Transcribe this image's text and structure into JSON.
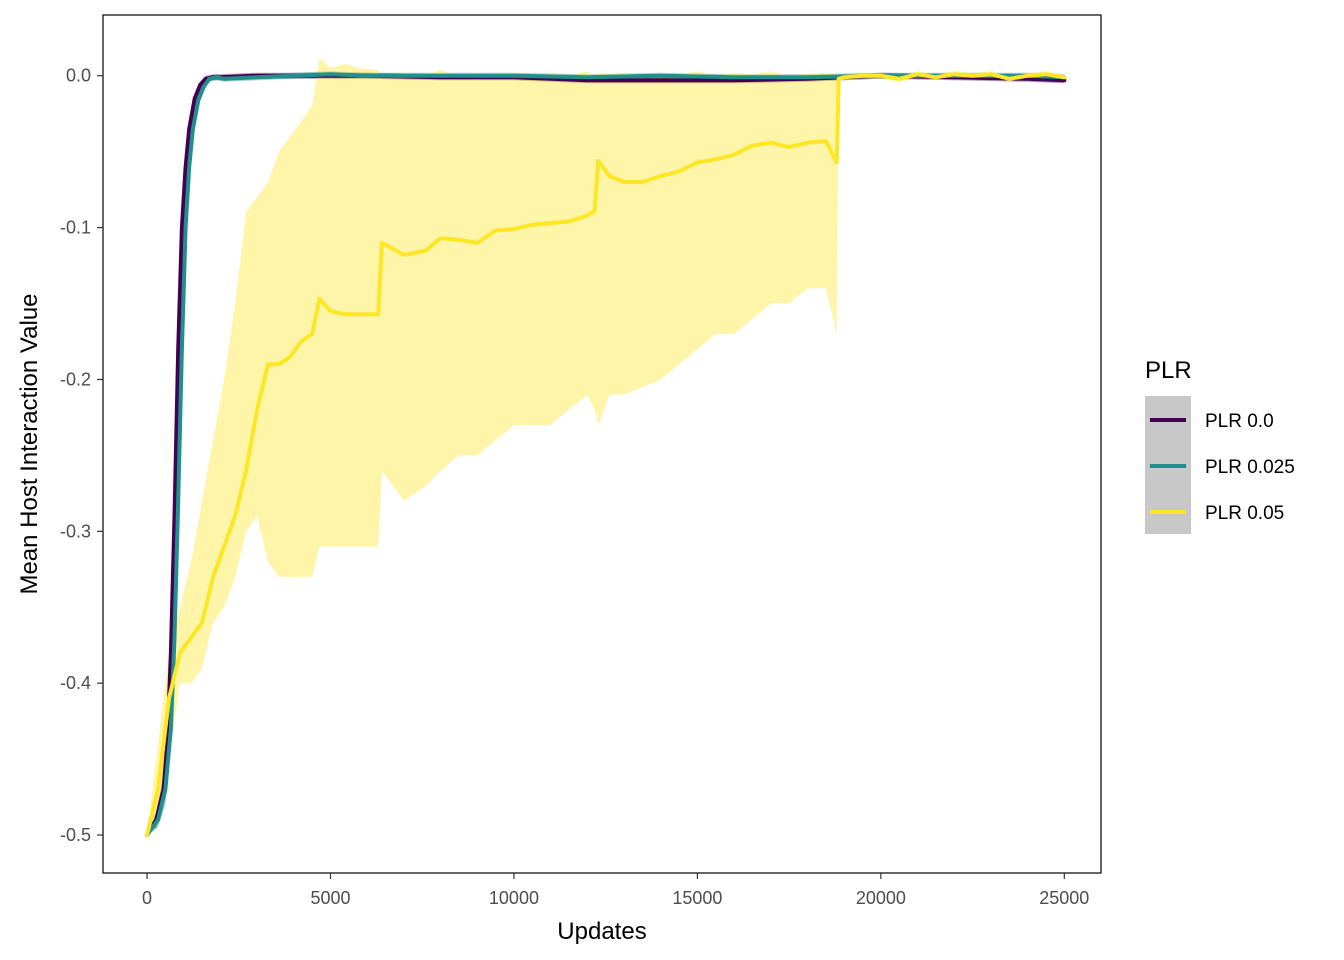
{
  "chart_data": {
    "type": "line",
    "title": "",
    "xlabel": "Updates",
    "ylabel": "Mean Host Interaction Value",
    "xlim": [
      -1200,
      26000
    ],
    "ylim": [
      -0.525,
      0.04
    ],
    "x_ticks": [
      0,
      5000,
      10000,
      15000,
      20000,
      25000
    ],
    "x_tick_labels": [
      "0",
      "5000",
      "10000",
      "15000",
      "20000",
      "25000"
    ],
    "y_ticks": [
      0.0,
      -0.1,
      -0.2,
      -0.3,
      -0.4,
      -0.5
    ],
    "y_tick_labels": [
      "0.0",
      "-0.1",
      "-0.2",
      "-0.3",
      "-0.4",
      "-0.5"
    ],
    "grid": false,
    "legend": {
      "title": "PLR",
      "position": "right",
      "entries": [
        "PLR 0.0",
        "PLR 0.025",
        "PLR 0.05"
      ]
    },
    "series": [
      {
        "name": "PLR 0.0",
        "color": "#440154",
        "x": [
          0,
          250,
          450,
          550,
          650,
          750,
          850,
          950,
          1050,
          1150,
          1300,
          1450,
          1600,
          1800,
          2000,
          3000,
          4000,
          5000,
          6000,
          8000,
          10000,
          12000,
          14000,
          16000,
          18000,
          20000,
          22000,
          24000,
          25000
        ],
        "y": [
          -0.5,
          -0.49,
          -0.47,
          -0.44,
          -0.38,
          -0.29,
          -0.18,
          -0.1,
          -0.06,
          -0.035,
          -0.015,
          -0.006,
          -0.002,
          -0.001,
          -0.001,
          0.0,
          0.0,
          0.0,
          0.0,
          -0.001,
          -0.001,
          -0.003,
          -0.003,
          -0.003,
          -0.002,
          0.0,
          -0.001,
          -0.002,
          -0.003
        ],
        "band_low": [
          -0.5,
          -0.495,
          -0.48,
          -0.45,
          -0.39,
          -0.3,
          -0.19,
          -0.11,
          -0.065,
          -0.04,
          -0.018,
          -0.008,
          -0.004,
          -0.003,
          -0.003,
          -0.002,
          -0.002,
          -0.002,
          -0.002,
          -0.003,
          -0.003,
          -0.005,
          -0.005,
          -0.005,
          -0.004,
          -0.002,
          -0.003,
          -0.004,
          -0.005
        ],
        "band_high": [
          -0.5,
          -0.485,
          -0.46,
          -0.43,
          -0.37,
          -0.28,
          -0.17,
          -0.09,
          -0.055,
          -0.03,
          -0.012,
          -0.004,
          0.0,
          0.001,
          0.001,
          0.002,
          0.002,
          0.002,
          0.002,
          0.001,
          0.001,
          -0.001,
          -0.001,
          -0.001,
          0.0,
          0.002,
          0.001,
          0.0,
          -0.001
        ]
      },
      {
        "name": "PLR 0.025",
        "color": "#21908C",
        "x": [
          0,
          300,
          500,
          650,
          750,
          850,
          950,
          1050,
          1150,
          1250,
          1400,
          1550,
          1700,
          1900,
          2100,
          3000,
          4000,
          5000,
          6000,
          8000,
          10000,
          12000,
          14000,
          16000,
          18000,
          20000,
          22000,
          24000,
          25000
        ],
        "y": [
          -0.5,
          -0.49,
          -0.47,
          -0.43,
          -0.37,
          -0.28,
          -0.18,
          -0.1,
          -0.06,
          -0.035,
          -0.016,
          -0.007,
          -0.002,
          -0.001,
          -0.002,
          -0.001,
          0.0,
          0.001,
          0.0,
          0.0,
          0.0,
          -0.001,
          0.0,
          -0.001,
          -0.001,
          0.0,
          0.0,
          0.0,
          -0.001
        ],
        "band_low": [
          -0.5,
          -0.495,
          -0.48,
          -0.44,
          -0.38,
          -0.29,
          -0.19,
          -0.11,
          -0.065,
          -0.04,
          -0.02,
          -0.009,
          -0.004,
          -0.003,
          -0.004,
          -0.003,
          -0.002,
          -0.001,
          -0.002,
          -0.002,
          -0.002,
          -0.003,
          -0.002,
          -0.003,
          -0.003,
          -0.002,
          -0.002,
          -0.002,
          -0.003
        ],
        "band_high": [
          -0.5,
          -0.485,
          -0.46,
          -0.42,
          -0.36,
          -0.27,
          -0.17,
          -0.09,
          -0.055,
          -0.03,
          -0.012,
          -0.005,
          0.0,
          0.001,
          0.0,
          0.001,
          0.002,
          0.003,
          0.002,
          0.002,
          0.002,
          0.001,
          0.002,
          0.001,
          0.001,
          0.002,
          0.002,
          0.002,
          0.001
        ]
      },
      {
        "name": "PLR 0.05",
        "color": "#FDE725",
        "x": [
          0,
          300,
          600,
          900,
          1200,
          1500,
          1800,
          2100,
          2400,
          2700,
          3000,
          3300,
          3600,
          3900,
          4200,
          4500,
          4700,
          5000,
          5400,
          5800,
          6300,
          6400,
          7000,
          7600,
          8000,
          8500,
          9000,
          9500,
          10000,
          10500,
          11000,
          11500,
          12000,
          12200,
          12300,
          12600,
          13000,
          13500,
          14000,
          14500,
          15000,
          15500,
          16000,
          16500,
          17000,
          17500,
          18000,
          18500,
          18800,
          18850,
          19000,
          19500,
          20000,
          20500,
          21000,
          21500,
          22000,
          22500,
          23000,
          23500,
          24000,
          24500,
          25000
        ],
        "y": [
          -0.5,
          -0.47,
          -0.41,
          -0.38,
          -0.37,
          -0.36,
          -0.33,
          -0.31,
          -0.29,
          -0.26,
          -0.22,
          -0.19,
          -0.19,
          -0.185,
          -0.175,
          -0.17,
          -0.147,
          -0.155,
          -0.157,
          -0.157,
          -0.157,
          -0.11,
          -0.118,
          -0.115,
          -0.107,
          -0.108,
          -0.11,
          -0.102,
          -0.101,
          -0.098,
          -0.097,
          -0.096,
          -0.092,
          -0.089,
          -0.056,
          -0.066,
          -0.07,
          -0.07,
          -0.066,
          -0.063,
          -0.057,
          -0.055,
          -0.052,
          -0.046,
          -0.044,
          -0.047,
          -0.044,
          -0.043,
          -0.057,
          -0.002,
          -0.001,
          0.0,
          0.0,
          -0.002,
          0.001,
          -0.001,
          0.001,
          0.0,
          0.001,
          -0.002,
          0.0,
          0.001,
          -0.001
        ],
        "band_low": [
          -0.5,
          -0.49,
          -0.45,
          -0.4,
          -0.4,
          -0.39,
          -0.36,
          -0.35,
          -0.33,
          -0.3,
          -0.29,
          -0.32,
          -0.33,
          -0.33,
          -0.33,
          -0.33,
          -0.31,
          -0.31,
          -0.31,
          -0.31,
          -0.31,
          -0.26,
          -0.28,
          -0.27,
          -0.26,
          -0.25,
          -0.25,
          -0.24,
          -0.23,
          -0.23,
          -0.23,
          -0.22,
          -0.21,
          -0.22,
          -0.23,
          -0.21,
          -0.21,
          -0.205,
          -0.2,
          -0.19,
          -0.18,
          -0.17,
          -0.17,
          -0.16,
          -0.15,
          -0.15,
          -0.14,
          -0.14,
          -0.17,
          -0.002,
          -0.003,
          -0.002,
          -0.002,
          -0.004,
          -0.001,
          -0.003,
          -0.001,
          -0.002,
          -0.001,
          -0.004,
          -0.002,
          -0.001,
          -0.003
        ],
        "band_high": [
          -0.5,
          -0.44,
          -0.38,
          -0.35,
          -0.32,
          -0.28,
          -0.24,
          -0.2,
          -0.15,
          -0.09,
          -0.08,
          -0.07,
          -0.05,
          -0.04,
          -0.03,
          -0.02,
          0.012,
          0.005,
          0.008,
          0.005,
          0.004,
          -0.002,
          0.002,
          0.0,
          0.004,
          0.0,
          0.002,
          0.001,
          0.001,
          -0.002,
          0.002,
          0.0,
          0.003,
          -0.001,
          0.002,
          0.001,
          0.002,
          -0.001,
          0.002,
          0.001,
          0.003,
          0.0,
          0.002,
          0.001,
          0.003,
          0.0,
          0.001,
          0.002,
          0.001,
          0.0,
          0.001,
          0.002,
          0.002,
          0.0,
          0.003,
          0.001,
          0.003,
          0.002,
          0.003,
          0.0,
          0.002,
          0.003,
          0.001
        ]
      }
    ]
  }
}
